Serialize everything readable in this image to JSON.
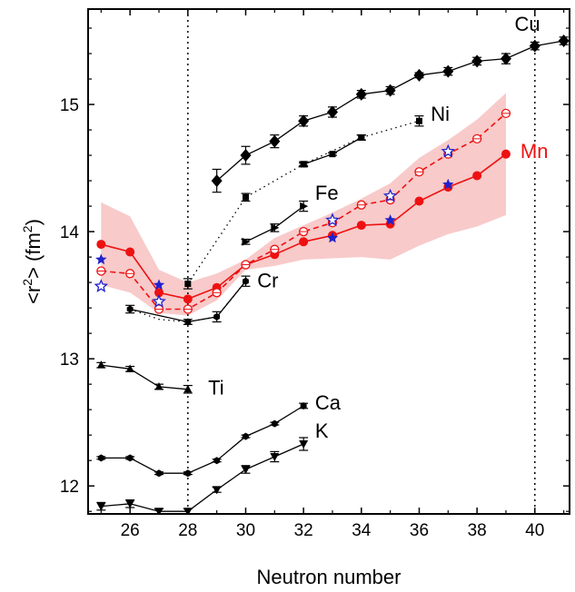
{
  "chart_data": {
    "type": "line",
    "xlabel": "Neutron number",
    "ylabel_prefix": "<r",
    "ylabel_sup1": "2",
    "ylabel_mid": "> (fm",
    "ylabel_sup2": "2",
    "ylabel_suffix": ")",
    "xlim": [
      24.55,
      41.2
    ],
    "ylim": [
      11.78,
      15.75
    ],
    "x_ticks": [
      26,
      28,
      30,
      32,
      34,
      36,
      38,
      40
    ],
    "x_tick_labels": [
      "26",
      "28",
      "30",
      "32",
      "34",
      "36",
      "38",
      "40"
    ],
    "y_ticks": [
      12,
      13,
      14,
      15
    ],
    "y_tick_labels": [
      "12",
      "13",
      "14",
      "15"
    ],
    "reference_lines_x": [
      28,
      40
    ],
    "colors": {
      "black": "#000000",
      "red": "#ee1111",
      "band": "#f4a7a7",
      "blue": "#2222cc"
    },
    "series": [
      {
        "name": "Cu",
        "marker": "diamond",
        "color": "#000000",
        "dash": "solid",
        "x": [
          29,
          30,
          31,
          32,
          33,
          34,
          35,
          36,
          37,
          38,
          39,
          40,
          41
        ],
        "y": [
          14.4,
          14.6,
          14.71,
          14.87,
          14.94,
          15.08,
          15.11,
          15.23,
          15.26,
          15.34,
          15.36,
          15.46,
          15.5
        ],
        "err": [
          0.09,
          0.07,
          0.05,
          0.04,
          0.04,
          0.03,
          0.03,
          0.02,
          0.03,
          0.03,
          0.04,
          0.03,
          0.03
        ]
      },
      {
        "name": "Ni",
        "marker": "square",
        "color": "#000000",
        "dash": "dotted",
        "x": [
          28,
          30,
          32,
          34,
          36
        ],
        "y": [
          13.59,
          14.27,
          14.53,
          14.74,
          14.87
        ],
        "err": [
          0.04,
          0.03,
          0.02,
          0.02,
          0.04
        ]
      },
      {
        "name": "",
        "marker": "square",
        "color": "#000000",
        "dash": "solid",
        "x": [
          32,
          33,
          34
        ],
        "y": [
          14.53,
          14.61,
          14.74
        ],
        "err": [
          0.01,
          0.01,
          0.02
        ]
      },
      {
        "name": "Fe",
        "marker": "triangle-right",
        "color": "#000000",
        "dash": "solid",
        "x": [
          30,
          31,
          32
        ],
        "y": [
          13.92,
          14.03,
          14.2
        ],
        "err": [
          0.02,
          0.03,
          0.04
        ]
      },
      {
        "name": "Cr",
        "marker": "hexagon",
        "color": "#000000",
        "dash": "solid",
        "x": [
          26,
          28,
          29,
          30
        ],
        "y": [
          13.39,
          13.29,
          13.33,
          13.61
        ],
        "err": [
          0.03,
          0.02,
          0.04,
          0.04
        ]
      },
      {
        "name": "",
        "marker": "none",
        "color": "#000000",
        "dash": "dotted",
        "x": [
          26,
          27,
          28,
          29,
          30
        ],
        "y": [
          13.39,
          13.31,
          13.29,
          13.33,
          13.61
        ],
        "err": []
      },
      {
        "name": "Ti",
        "marker": "triangle-up",
        "color": "#000000",
        "dash": "solid",
        "x": [
          25,
          26,
          27,
          28
        ],
        "y": [
          12.95,
          12.92,
          12.78,
          12.76
        ],
        "err": [
          0.02,
          0.02,
          0.02,
          0.03
        ]
      },
      {
        "name": "Ca",
        "marker": "hexagon",
        "color": "#000000",
        "dash": "solid",
        "x": [
          25,
          26,
          27,
          28,
          29,
          30,
          31,
          32
        ],
        "y": [
          12.22,
          12.22,
          12.1,
          12.1,
          12.2,
          12.39,
          12.49,
          12.63
        ],
        "err": [
          0.01,
          0.01,
          0.01,
          0.01,
          0.01,
          0.01,
          0.01,
          0.02
        ]
      },
      {
        "name": "K",
        "marker": "triangle-down",
        "color": "#000000",
        "dash": "solid",
        "x": [
          25,
          26,
          27,
          28,
          29,
          30,
          31,
          32
        ],
        "y": [
          11.84,
          11.86,
          11.8,
          11.8,
          11.97,
          12.13,
          12.23,
          12.33
        ],
        "err": [
          0.03,
          0.03,
          0.02,
          0.02,
          0.02,
          0.03,
          0.04,
          0.05
        ]
      },
      {
        "name": "Mn",
        "marker": "circle",
        "color": "#ee1111",
        "dash": "solid",
        "x": [
          25,
          26,
          27,
          28,
          29,
          30,
          31,
          32,
          33,
          34,
          35,
          36,
          37,
          38,
          39
        ],
        "y": [
          13.9,
          13.84,
          13.52,
          13.47,
          13.56,
          13.74,
          13.82,
          13.92,
          13.97,
          14.05,
          14.06,
          14.24,
          14.35,
          14.44,
          14.61
        ],
        "band_lower": [
          13.58,
          13.52,
          13.36,
          13.34,
          13.46,
          13.7,
          13.73,
          13.78,
          13.79,
          13.8,
          13.78,
          13.89,
          13.98,
          14.04,
          14.13
        ],
        "band_upper": [
          14.23,
          14.12,
          13.7,
          13.6,
          13.67,
          13.78,
          13.95,
          14.05,
          14.15,
          14.26,
          14.38,
          14.58,
          14.72,
          14.88,
          15.09
        ]
      },
      {
        "name": "",
        "marker": "circle-open",
        "color": "#ee1111",
        "dash": "dashed",
        "x": [
          25,
          26,
          27,
          28,
          29,
          30,
          31,
          32,
          33,
          34,
          35,
          36,
          37,
          38,
          39
        ],
        "y": [
          13.69,
          13.67,
          13.39,
          13.39,
          13.52,
          13.74,
          13.86,
          14.0,
          14.07,
          14.21,
          14.25,
          14.47,
          14.61,
          14.73,
          14.93
        ]
      },
      {
        "name": "",
        "marker": "star-open",
        "color": "#2222cc",
        "dash": "none",
        "x": [
          25,
          27,
          33,
          35,
          37
        ],
        "y": [
          13.57,
          13.45,
          14.09,
          14.28,
          14.63
        ]
      },
      {
        "name": "",
        "marker": "star-filled",
        "color": "#2222cc",
        "dash": "none",
        "x": [
          25,
          27,
          33,
          35,
          37
        ],
        "y": [
          13.78,
          13.58,
          13.95,
          14.09,
          14.37
        ]
      }
    ],
    "labels": [
      {
        "text": "Cu",
        "x": 39.3,
        "y": 15.58,
        "color": "#000000"
      },
      {
        "text": "Ni",
        "x": 36.4,
        "y": 14.87,
        "color": "#000000"
      },
      {
        "text": "Mn",
        "x": 39.5,
        "y": 14.58,
        "color": "#ee1111"
      },
      {
        "text": "Fe",
        "x": 32.4,
        "y": 14.25,
        "color": "#000000"
      },
      {
        "text": "Cr",
        "x": 30.4,
        "y": 13.56,
        "color": "#000000"
      },
      {
        "text": "Ti",
        "x": 28.7,
        "y": 12.72,
        "color": "#000000"
      },
      {
        "text": "Ca",
        "x": 32.4,
        "y": 12.6,
        "color": "#000000"
      },
      {
        "text": "K",
        "x": 32.4,
        "y": 12.38,
        "color": "#000000"
      }
    ]
  }
}
